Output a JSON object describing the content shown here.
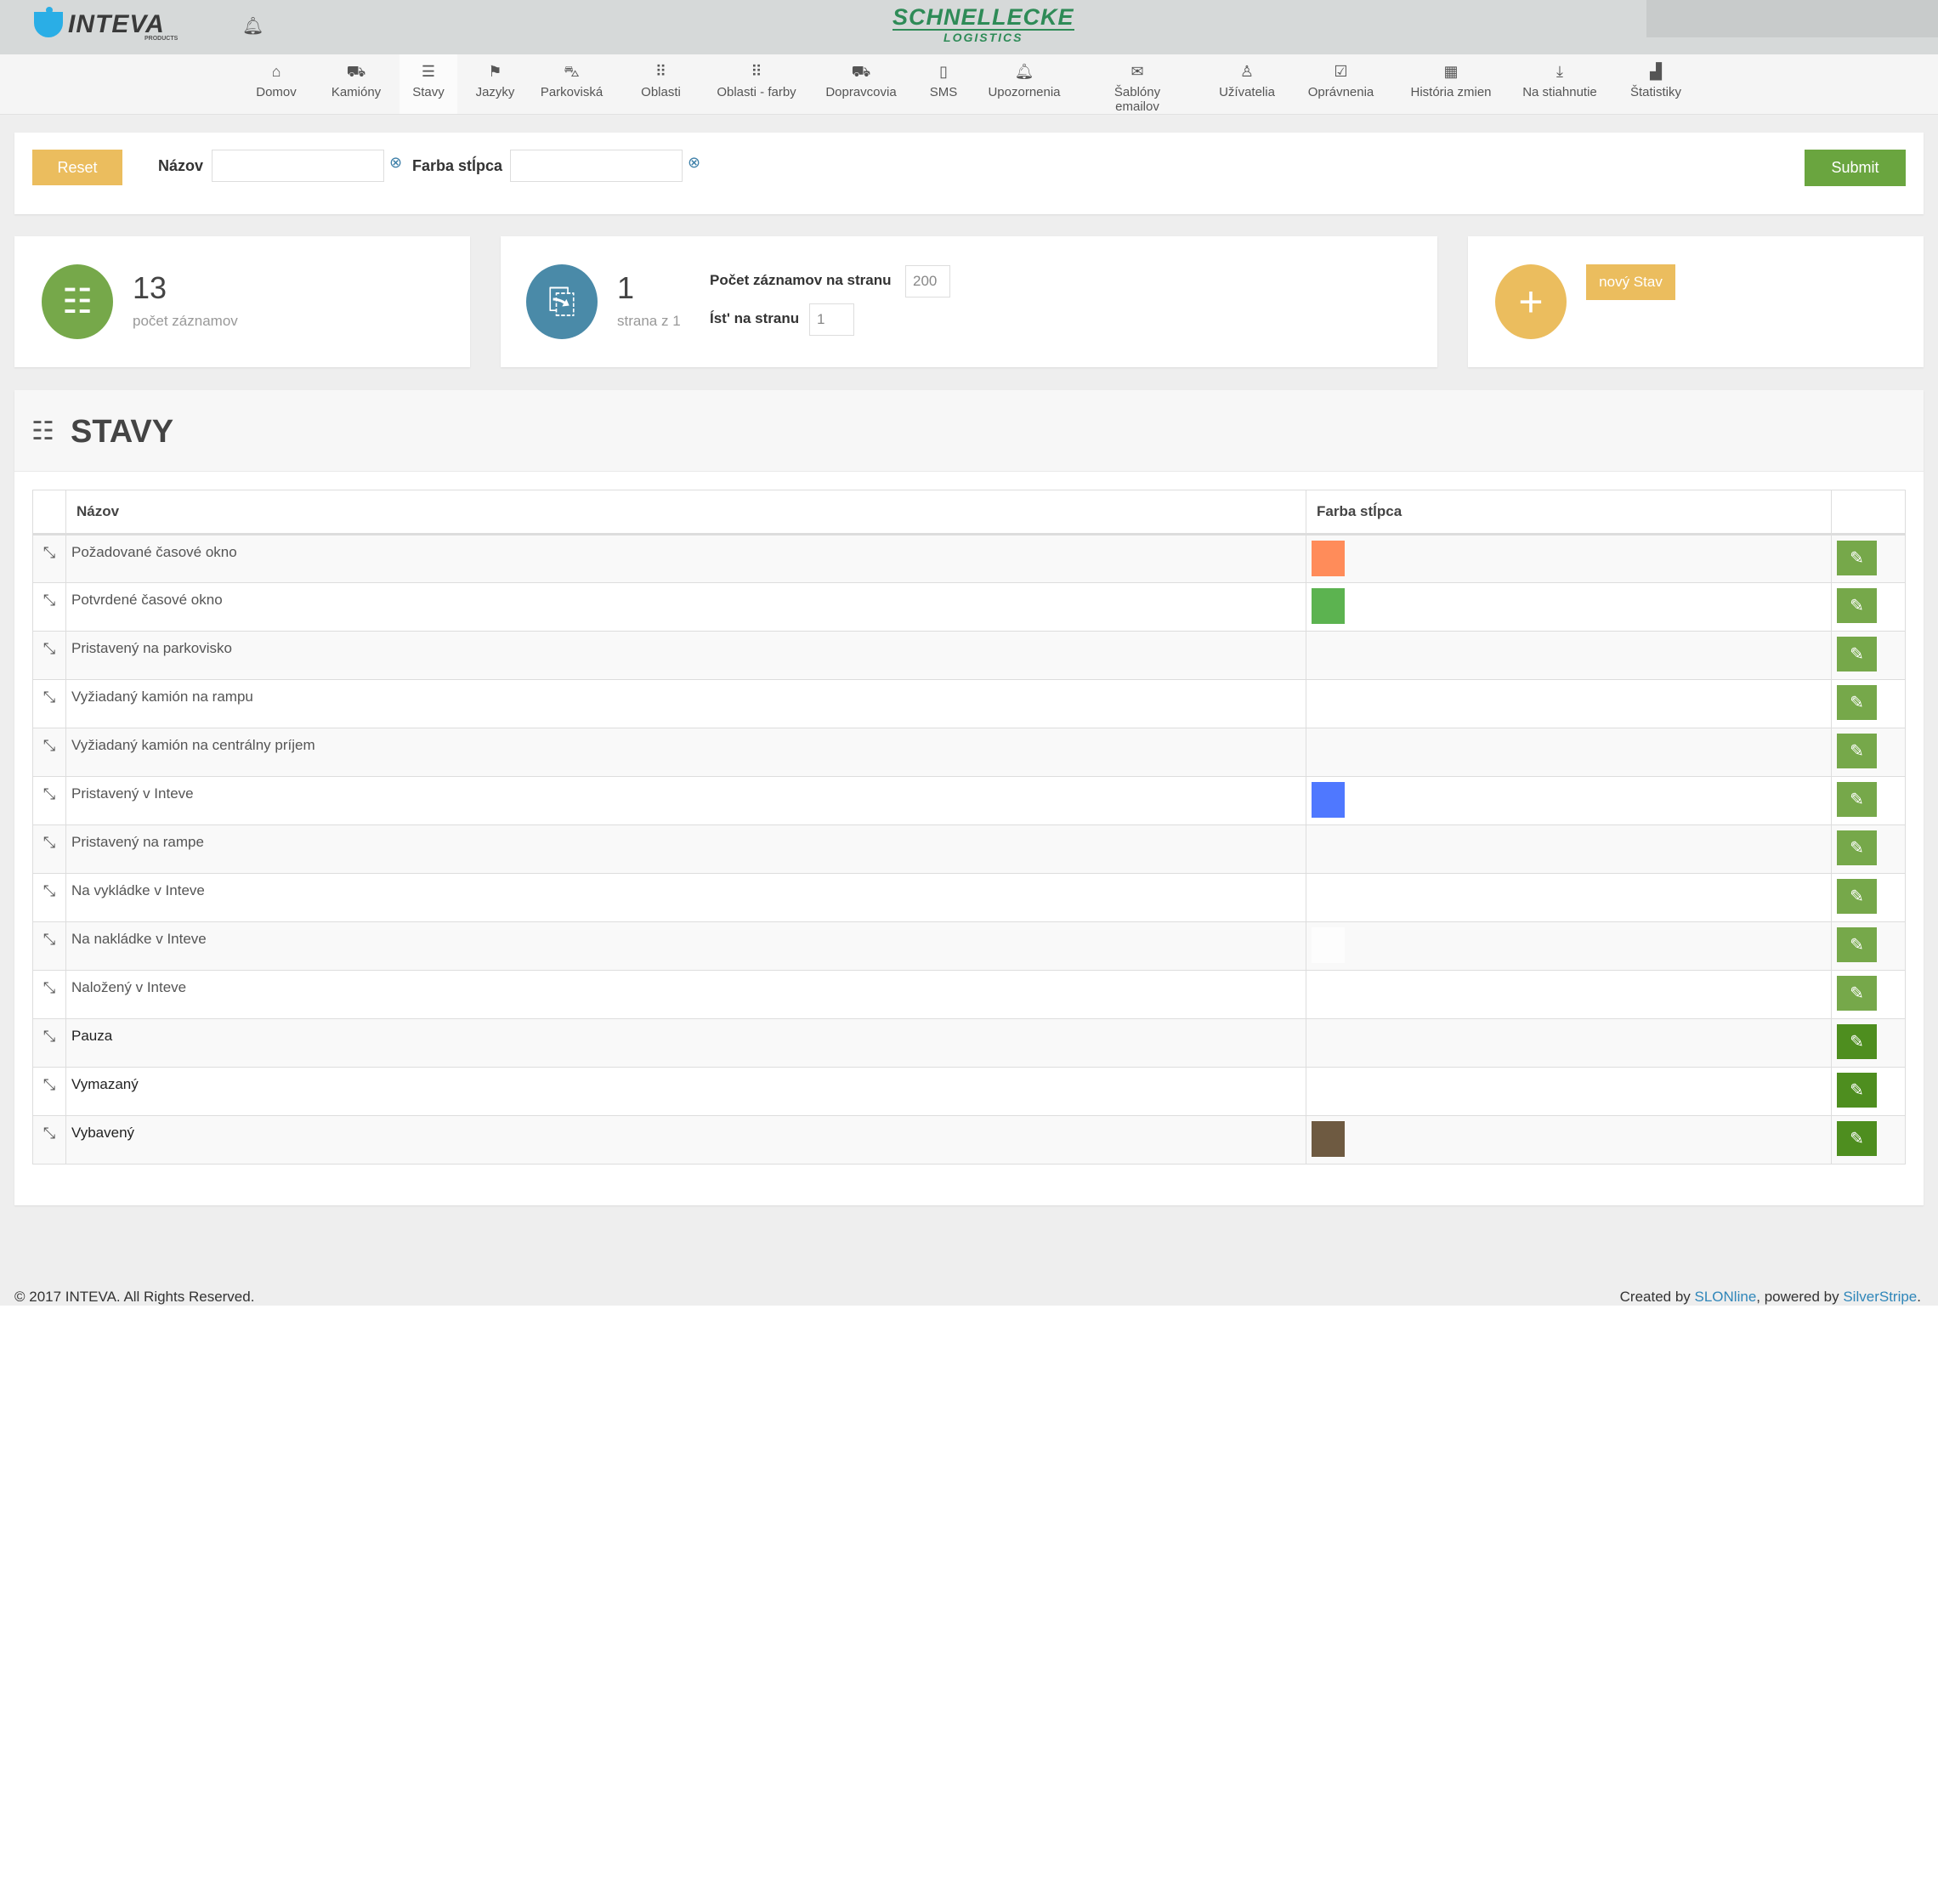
{
  "header": {
    "logo": "INTEVA",
    "logo_sub": "PRODUCTS",
    "brand_line1": "SCHNELLECKE",
    "brand_line2": "LOGISTICS"
  },
  "nav": [
    {
      "label": "Domov",
      "icon": "home-icon",
      "glyph": "⌂"
    },
    {
      "label": "Kamióny",
      "icon": "truck-icon",
      "glyph": "⛟"
    },
    {
      "label": "Stavy",
      "icon": "list-icon",
      "glyph": "☰",
      "active": true
    },
    {
      "label": "Jazyky",
      "icon": "flag-icon",
      "glyph": "⚑"
    },
    {
      "label": "Parkoviská",
      "icon": "car-icon",
      "glyph": "⛍"
    },
    {
      "label": "Oblasti",
      "icon": "grid-icon",
      "glyph": "⠿"
    },
    {
      "label": "Oblasti - farby",
      "icon": "grid-icon",
      "glyph": "⠿"
    },
    {
      "label": "Dopravcovia",
      "icon": "truck-icon",
      "glyph": "⛟"
    },
    {
      "label": "SMS",
      "icon": "phone-icon",
      "glyph": "▯"
    },
    {
      "label": "Upozornenia",
      "icon": "bell-icon",
      "glyph": "🔔︎"
    },
    {
      "label": "Šablóny emailov",
      "icon": "envelope-icon",
      "glyph": "✉"
    },
    {
      "label": "Užívatelia",
      "icon": "user-icon",
      "glyph": "♙"
    },
    {
      "label": "Oprávnenia",
      "icon": "checkbox-icon",
      "glyph": "☑"
    },
    {
      "label": "História zmien",
      "icon": "calendar-icon",
      "glyph": "▦"
    },
    {
      "label": "Na stiahnutie",
      "icon": "download-icon",
      "glyph": "⤓"
    },
    {
      "label": "Štatistiky",
      "icon": "bar-chart-icon",
      "glyph": "▟"
    }
  ],
  "filter": {
    "reset": "Reset",
    "name_label": "Názov",
    "name_value": "",
    "color_label": "Farba stĺpca",
    "color_value": "",
    "submit": "Submit"
  },
  "stats": {
    "count": "13",
    "count_label": "počet záznamov",
    "page": "1",
    "page_label": "strana z 1",
    "per_page_label": "Počet záznamov na stranu",
    "per_page": "200",
    "goto_label": "Íst' na stranu",
    "goto": "1",
    "new_button": "nový Stav"
  },
  "section": {
    "title": "STAVY"
  },
  "table": {
    "headers": [
      "Názov",
      "Farba stĺpca"
    ],
    "rows": [
      {
        "name": "Požadované časové okno",
        "color": "#ff8c5a"
      },
      {
        "name": "Potvrdené časové okno",
        "color": "#5cb350"
      },
      {
        "name": "Pristavený na parkovisko",
        "color": ""
      },
      {
        "name": "Vyžiadaný kamión na rampu",
        "color": ""
      },
      {
        "name": "Vyžiadaný kamión na centrálny príjem",
        "color": ""
      },
      {
        "name": "Pristavený v Inteve",
        "color": "#4f78ff"
      },
      {
        "name": "Pristavený na rampe",
        "color": ""
      },
      {
        "name": "Na vykládke v Inteve",
        "color": ""
      },
      {
        "name": "Na nakládke v Inteve",
        "color": "#fdfdfd"
      },
      {
        "name": "Naložený v Inteve",
        "color": ""
      },
      {
        "name": "Pauza",
        "color": ""
      },
      {
        "name": "Vymazaný",
        "color": ""
      },
      {
        "name": "Vybavený",
        "color": "#6e5a41"
      }
    ]
  },
  "footer": {
    "copyright": "© 2017 INTEVA. All Rights Reserved.",
    "created_by": "Created by ",
    "slon": "SLONline",
    "powered": ", powered by ",
    "silverstripe": "SilverStripe",
    "dot": "."
  },
  "colors": {
    "accent_yellow": "#ebbd5e",
    "accent_green": "#6aa53f",
    "accent_blue": "#4a8aa8"
  }
}
